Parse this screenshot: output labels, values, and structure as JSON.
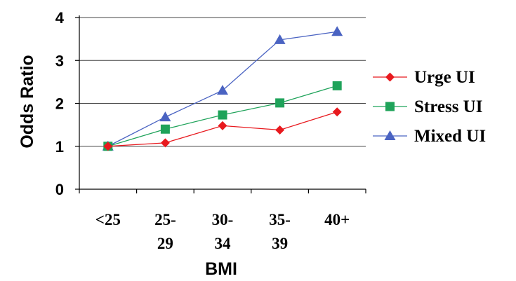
{
  "chart_data": {
    "type": "line",
    "title": "",
    "xlabel": "BMI",
    "ylabel": "Odds Ratio",
    "categories": [
      [
        "<25"
      ],
      [
        "25-",
        "29"
      ],
      [
        "30-",
        "34"
      ],
      [
        "35-",
        "39"
      ],
      [
        "40+"
      ]
    ],
    "yticks": [
      "0",
      "1",
      "2",
      "3",
      "4"
    ],
    "ylim": [
      0,
      4
    ],
    "grid": "horizontal",
    "legend": "right",
    "series": [
      {
        "name": "Urge UI",
        "marker": "diamond",
        "color": "#e8191e",
        "values": [
          1.0,
          1.08,
          1.48,
          1.38,
          1.8
        ]
      },
      {
        "name": "Stress UI",
        "marker": "square",
        "color": "#1fa35a",
        "values": [
          1.0,
          1.4,
          1.73,
          2.01,
          2.41
        ]
      },
      {
        "name": "Mixed UI",
        "marker": "triangle",
        "color": "#4a63c2",
        "values": [
          1.0,
          1.68,
          2.3,
          3.48,
          3.67
        ]
      }
    ]
  }
}
